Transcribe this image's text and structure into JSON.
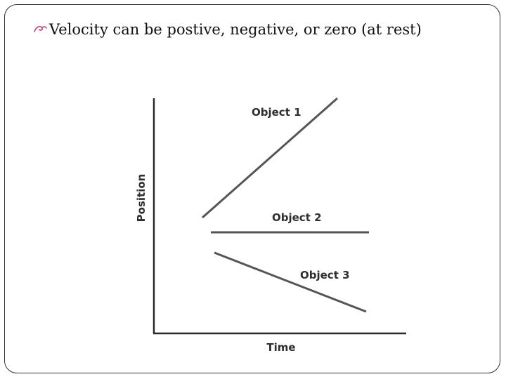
{
  "slide": {
    "bullet_text": "Velocity can be postive, negative, or zero (at rest)"
  },
  "diagram": {
    "x_axis_label": "Time",
    "y_axis_label": "Position",
    "lines": [
      {
        "label": "Object 1",
        "slope": "positive"
      },
      {
        "label": "Object 2",
        "slope": "zero"
      },
      {
        "label": "Object 3",
        "slope": "negative"
      }
    ],
    "line_color": "#555555",
    "axis_color": "#2a2a2a"
  }
}
